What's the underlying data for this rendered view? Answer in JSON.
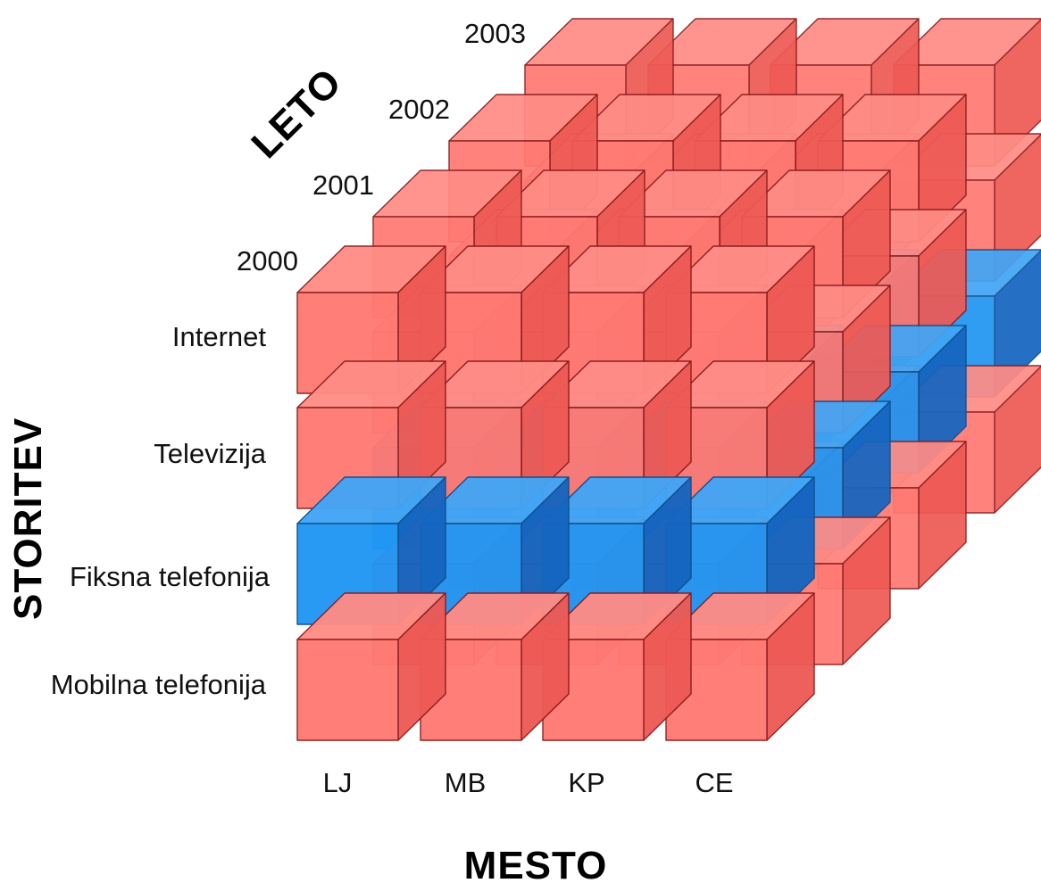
{
  "axes": {
    "year_axis_title": "LETO",
    "service_axis_title": "STORITEV",
    "place_axis_title": "MESTO"
  },
  "years": [
    "2000",
    "2001",
    "2002",
    "2003"
  ],
  "services": [
    "Internet",
    "Televizija",
    "Fiksna telefonija",
    "Mobilna telefonija"
  ],
  "places": [
    "LJ",
    "MB",
    "KP",
    "CE"
  ],
  "highlighted_service": "Fiksna telefonija",
  "colors": {
    "cube_front": "#ff7a73",
    "cube_top": "#ff8c86",
    "cube_side": "#ee5a55",
    "highlight_front": "#2196f3",
    "highlight_top": "#42a5f5",
    "highlight_side": "#1565c0",
    "edge": "#8a1a1a"
  }
}
